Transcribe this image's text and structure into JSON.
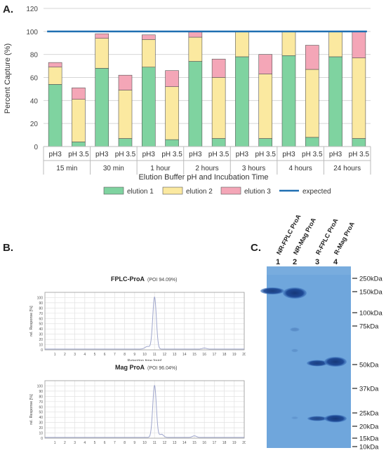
{
  "panels": {
    "a": "A.",
    "b": "B.",
    "c": "C."
  },
  "chart_data": [
    {
      "type": "bar",
      "stacked": true,
      "ylabel": "Percent Capture (%)",
      "xlabel": "Elution Buffer pH and Incubation Time",
      "ylim": [
        0,
        120
      ],
      "yticks": [
        0,
        20,
        40,
        60,
        80,
        100,
        120
      ],
      "grid": true,
      "legend_position": "bottom",
      "groups": [
        "15 min",
        "30 min",
        "1 hour",
        "2 hours",
        "3 hours",
        "4 hours",
        "24 hours"
      ],
      "categories": [
        "pH3",
        "pH 3.5",
        "pH3",
        "pH 3.5",
        "pH3",
        "pH 3.5",
        "pH3",
        "pH 3.5",
        "pH3",
        "pH 3.5",
        "pH3",
        "pH 3.5",
        "pH3",
        "pH 3.5"
      ],
      "series": [
        {
          "name": "elution 1",
          "color": "#7fd3a0",
          "values": [
            54,
            4,
            68,
            7,
            69,
            6,
            74,
            7,
            78,
            7,
            79,
            8,
            78,
            7
          ]
        },
        {
          "name": "elution 2",
          "color": "#fbe9a0",
          "values": [
            15,
            37,
            26,
            42,
            24,
            46,
            21,
            53,
            22,
            56,
            21,
            59,
            22,
            70
          ]
        },
        {
          "name": "elution 3",
          "color": "#f4a6b7",
          "values": [
            4,
            10,
            4,
            13,
            4,
            14,
            5,
            16,
            0,
            17,
            0,
            21,
            0,
            23
          ]
        }
      ],
      "expected": {
        "name": "expected",
        "color": "#1f6fb2",
        "value": 100
      }
    },
    {
      "type": "line",
      "title": "FPLC-ProA",
      "subtitle": "(POI 94.09%)",
      "xlabel": "Retention time [min]",
      "ylabel": "rel. Response [%]",
      "xlim": [
        0,
        20
      ],
      "ylim": [
        0,
        110
      ],
      "xticks": [
        1,
        2,
        3,
        4,
        5,
        6,
        7,
        8,
        9,
        10,
        11,
        12,
        13,
        14,
        15,
        16,
        17,
        18,
        19,
        20
      ],
      "yticks": [
        0,
        10,
        20,
        30,
        40,
        50,
        60,
        70,
        80,
        90,
        100
      ],
      "color": "#9fa6cc",
      "peaks": [
        {
          "x": 11.0,
          "y": 100,
          "width": 0.18
        },
        {
          "x": 10.3,
          "y": 5,
          "width": 0.25
        },
        {
          "x": 16.0,
          "y": 2,
          "width": 0.2
        }
      ],
      "baseline": 1.5
    },
    {
      "type": "line",
      "title": "Mag ProA",
      "subtitle": "(POI 96.04%)",
      "xlabel": "Retention time [min]",
      "ylabel": "rel. Response [%]",
      "xlim": [
        0,
        20
      ],
      "ylim": [
        0,
        110
      ],
      "xticks": [
        1,
        2,
        3,
        4,
        5,
        6,
        7,
        8,
        9,
        10,
        11,
        12,
        13,
        14,
        15,
        16,
        17,
        18,
        19,
        20
      ],
      "yticks": [
        0,
        10,
        20,
        30,
        40,
        50,
        60,
        70,
        80,
        90,
        100
      ],
      "color": "#9fa6cc",
      "peaks": [
        {
          "x": 11.0,
          "y": 100,
          "width": 0.18
        },
        {
          "x": 11.7,
          "y": 6,
          "width": 0.2
        },
        {
          "x": 15.0,
          "y": 3,
          "width": 0.2
        }
      ],
      "baseline": 1.5
    }
  ],
  "gel": {
    "lane_labels": [
      "NR-FPLC ProA",
      "NR-Mag ProA",
      "R-FPLC ProA",
      "R-Mag ProA"
    ],
    "lane_numbers": [
      "1",
      "2",
      "3",
      "4"
    ],
    "markers": [
      "250kDa",
      "150kDa",
      "100kDa",
      "75kDa",
      "50kDa",
      "37kDa",
      "25kDa",
      "20kDa",
      "15kDa",
      "10kDa"
    ],
    "background_color": "#6fa6dc",
    "band_color": "#1c3f86"
  }
}
